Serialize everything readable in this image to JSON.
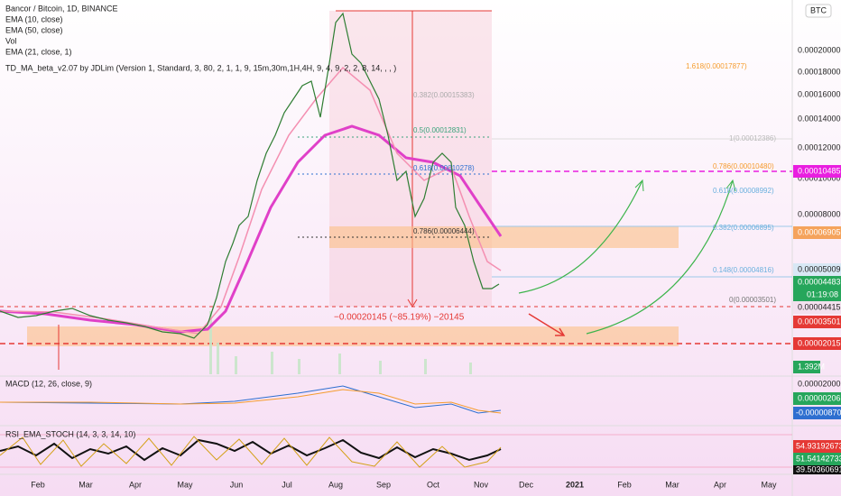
{
  "header": {
    "symbol": "Bancor / Bitcoin, 1D, BINANCE",
    "currency": "BTC",
    "indicators": [
      "EMA (10, close)",
      "EMA (50, close)",
      "Vol",
      "EMA (21, close, 1)",
      "TD_MA_beta_v2.07 by JDLim (Version 1, Standard, 3, 80, 2, 1, 1, 9, 15m,30m,1H,4H, 9, 4, 9, 2, 2, 8, 14, , , )"
    ]
  },
  "price_axis": [
    "0.00020000",
    "0.00018000",
    "0.00016000",
    "0.00014000",
    "0.00012000",
    "0.00010000",
    "0.00008000"
  ],
  "price_tags": [
    "0.00010485",
    "0.00006905",
    "0.00005009",
    "0.00004483",
    "01:19:08",
    "0.00004415",
    "0.00003501",
    "0.00002015",
    "1.392M"
  ],
  "fib_labels": [
    "1.618(0.00017877)",
    "0.382(0.00015383)",
    "0.5(0.00012831)",
    "0.618(0.00010278)",
    "0.786(0.00006444)",
    "1(0.00012386)",
    "0.786(0.00010480)",
    "0.618(0.00008992)",
    "0.382(0.00006895)",
    "0.148(0.00004816)",
    "0(0.00003501)"
  ],
  "measure": "−0.00020145 (~85.19%) −20145",
  "macd": {
    "title": "MACD (12, 26, close, 9)",
    "axis": "0.00002000",
    "tags": [
      "0.00000206",
      "-0.00000870"
    ]
  },
  "rsi": {
    "title": "RSI_EMA_STOCH (14, 3, 3, 14, 10)",
    "tags": [
      "54.93192673",
      "51.54142733",
      "39.50360691"
    ]
  },
  "time_axis": [
    "Feb",
    "Mar",
    "Apr",
    "May",
    "Jun",
    "Jul",
    "Aug",
    "Sep",
    "Oct",
    "Nov",
    "Dec",
    "2021",
    "Feb",
    "Mar",
    "Apr",
    "May"
  ]
}
